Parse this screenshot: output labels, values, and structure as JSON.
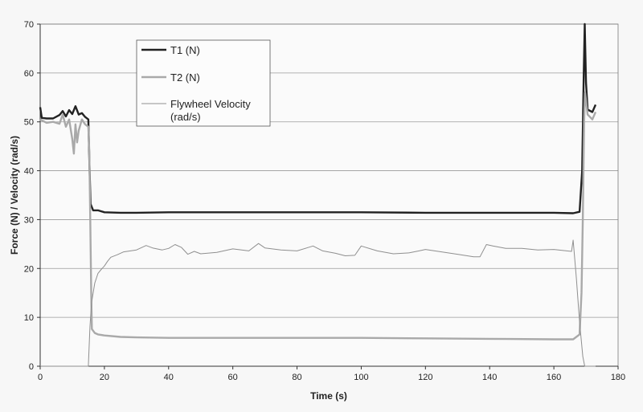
{
  "chart_data": {
    "type": "line",
    "title": "",
    "xlabel": "Time (s)",
    "ylabel": "Force (N) / Velocity (rad/s)",
    "xlim": [
      0,
      180
    ],
    "ylim": [
      0,
      70
    ],
    "x_ticks": [
      0,
      20,
      40,
      60,
      80,
      100,
      120,
      140,
      160,
      180
    ],
    "y_ticks": [
      0,
      10,
      20,
      30,
      40,
      50,
      60,
      70
    ],
    "grid": "horizontal",
    "legend_position": "top-left",
    "series": [
      {
        "name": "T1 (N)",
        "color": "#222222",
        "points": [
          [
            0,
            53
          ],
          [
            0.5,
            50.8
          ],
          [
            2,
            50.7
          ],
          [
            4,
            50.7
          ],
          [
            6,
            51.4
          ],
          [
            7,
            52.2
          ],
          [
            8,
            51.1
          ],
          [
            9,
            52.4
          ],
          [
            10,
            51.6
          ],
          [
            11,
            53.2
          ],
          [
            12,
            51.5
          ],
          [
            13,
            51.8
          ],
          [
            14,
            51.0
          ],
          [
            15,
            50.5
          ],
          [
            15.4,
            40
          ],
          [
            15.7,
            33.2
          ],
          [
            16.5,
            31.9
          ],
          [
            18,
            31.9
          ],
          [
            20,
            31.5
          ],
          [
            25,
            31.4
          ],
          [
            30,
            31.4
          ],
          [
            40,
            31.5
          ],
          [
            60,
            31.5
          ],
          [
            80,
            31.5
          ],
          [
            100,
            31.5
          ],
          [
            120,
            31.4
          ],
          [
            140,
            31.4
          ],
          [
            160,
            31.4
          ],
          [
            166,
            31.3
          ],
          [
            168,
            31.6
          ],
          [
            168.8,
            40
          ],
          [
            169.3,
            60
          ],
          [
            169.6,
            70
          ],
          [
            170,
            58
          ],
          [
            170.5,
            52.5
          ],
          [
            172,
            52
          ],
          [
            173,
            53.5
          ]
        ]
      },
      {
        "name": "T2 (N)",
        "color": "#a9a9a9",
        "points": [
          [
            0,
            50.5
          ],
          [
            2,
            49.8
          ],
          [
            4,
            50.0
          ],
          [
            6,
            49.6
          ],
          [
            7,
            51.5
          ],
          [
            8,
            49.0
          ],
          [
            9,
            50.5
          ],
          [
            10,
            46.5
          ],
          [
            10.5,
            43.5
          ],
          [
            11,
            49.5
          ],
          [
            11.5,
            45.8
          ],
          [
            12,
            48.2
          ],
          [
            13,
            50.5
          ],
          [
            14,
            49.5
          ],
          [
            15,
            49.0
          ],
          [
            15.3,
            44
          ],
          [
            15.6,
            30
          ],
          [
            15.9,
            15
          ],
          [
            16.1,
            7.6
          ],
          [
            17,
            6.8
          ],
          [
            18,
            6.5
          ],
          [
            20,
            6.3
          ],
          [
            25,
            6.0
          ],
          [
            30,
            5.9
          ],
          [
            40,
            5.8
          ],
          [
            60,
            5.8
          ],
          [
            80,
            5.8
          ],
          [
            100,
            5.8
          ],
          [
            120,
            5.7
          ],
          [
            140,
            5.6
          ],
          [
            160,
            5.5
          ],
          [
            166,
            5.5
          ],
          [
            168,
            6.5
          ],
          [
            168.6,
            15
          ],
          [
            169,
            30
          ],
          [
            169.4,
            50
          ],
          [
            169.7,
            56
          ],
          [
            170.5,
            51.5
          ],
          [
            172,
            50.5
          ],
          [
            173,
            52.0
          ]
        ]
      },
      {
        "name": "Flywheel Velocity (rad/s)",
        "color": "#8f8f8f",
        "points": [
          [
            0,
            0
          ],
          [
            15,
            0
          ],
          [
            15.5,
            8
          ],
          [
            16,
            13
          ],
          [
            17,
            17
          ],
          [
            18,
            19
          ],
          [
            19,
            19.8
          ],
          [
            20,
            20.5
          ],
          [
            21,
            21.5
          ],
          [
            22,
            22.3
          ],
          [
            24,
            22.8
          ],
          [
            26,
            23.4
          ],
          [
            30,
            23.8
          ],
          [
            33,
            24.7
          ],
          [
            35,
            24.2
          ],
          [
            38,
            23.8
          ],
          [
            40,
            24.1
          ],
          [
            42,
            24.9
          ],
          [
            44,
            24.3
          ],
          [
            46,
            22.9
          ],
          [
            48,
            23.5
          ],
          [
            50,
            23.0
          ],
          [
            55,
            23.3
          ],
          [
            60,
            24.0
          ],
          [
            65,
            23.6
          ],
          [
            68,
            25.1
          ],
          [
            70,
            24.2
          ],
          [
            75,
            23.8
          ],
          [
            80,
            23.6
          ],
          [
            85,
            24.6
          ],
          [
            88,
            23.6
          ],
          [
            92,
            23.1
          ],
          [
            95,
            22.6
          ],
          [
            98,
            22.7
          ],
          [
            100,
            24.6
          ],
          [
            105,
            23.6
          ],
          [
            110,
            23.0
          ],
          [
            115,
            23.2
          ],
          [
            118,
            23.6
          ],
          [
            120,
            23.9
          ],
          [
            125,
            23.4
          ],
          [
            130,
            22.9
          ],
          [
            135,
            22.4
          ],
          [
            137,
            22.4
          ],
          [
            139,
            24.9
          ],
          [
            141,
            24.6
          ],
          [
            145,
            24.1
          ],
          [
            150,
            24.1
          ],
          [
            155,
            23.8
          ],
          [
            160,
            23.9
          ],
          [
            164,
            23.6
          ],
          [
            165.5,
            23.5
          ],
          [
            166,
            25.8
          ],
          [
            167,
            18
          ],
          [
            168,
            9
          ],
          [
            169,
            2
          ],
          [
            169.6,
            0
          ],
          [
            173,
            0
          ]
        ]
      }
    ]
  }
}
